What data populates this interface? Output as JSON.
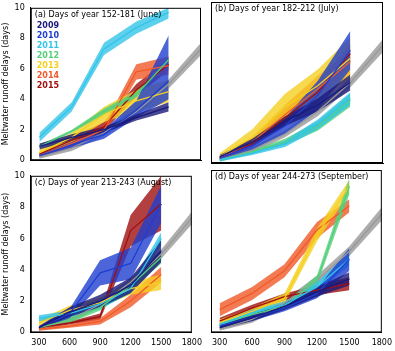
{
  "chart_data": [
    {
      "type": "line",
      "title": "(a) Days of year 152-181 (June)",
      "y_label": "Meltwater runoff delays (days)",
      "x": [
        300,
        600,
        900,
        1200,
        1500
      ],
      "xlim": [
        220,
        1800
      ],
      "xticks": [
        300,
        600,
        900,
        1200,
        1500,
        1800
      ],
      "ylim": [
        0,
        10
      ],
      "yticks": [
        0,
        2,
        4,
        6,
        8,
        10
      ],
      "grid": false,
      "legend": "upper left",
      "tick_labels": "y",
      "series": [
        {
          "name": "2009",
          "color": "#1a1a7a",
          "values": [
            0.9,
            1.5,
            2.0,
            2.8,
            3.5
          ],
          "lower": [
            0.7,
            1.3,
            1.8,
            2.6,
            3.2
          ],
          "upper": [
            1.1,
            1.7,
            2.2,
            3.0,
            3.8
          ]
        },
        {
          "name": "2010",
          "color": "#1f3fd0",
          "values": [
            0.3,
            1.0,
            1.7,
            3.3,
            5.2
          ],
          "lower": [
            0.2,
            0.8,
            1.4,
            2.8,
            4.0
          ],
          "upper": [
            0.4,
            1.2,
            2.0,
            3.9,
            8.2
          ]
        },
        {
          "name": "2011",
          "color": "#33c4e8",
          "values": [
            1.5,
            3.5,
            7.3,
            8.7,
            9.7
          ],
          "lower": [
            1.2,
            3.2,
            6.9,
            8.3,
            9.3
          ],
          "upper": [
            1.8,
            3.8,
            7.7,
            9.1,
            10
          ]
        },
        {
          "name": "2012",
          "color": "#55d07a",
          "values": [
            0.9,
            1.9,
            3.2,
            4.3,
            6.6
          ],
          "lower": [
            0.8,
            1.8,
            3.0,
            4.1,
            6.4
          ],
          "upper": [
            1.0,
            2.0,
            3.4,
            4.5,
            6.8
          ]
        },
        {
          "name": "2013",
          "color": "#f5d020",
          "values": [
            0.5,
            1.5,
            3.0,
            3.9,
            4.5
          ],
          "lower": [
            0.3,
            1.2,
            2.5,
            3.2,
            3.8
          ],
          "upper": [
            0.7,
            1.8,
            3.5,
            4.6,
            5.3
          ]
        },
        {
          "name": "2014",
          "color": "#f05a28",
          "values": [
            0.3,
            1.1,
            2.0,
            5.8,
            6.2
          ],
          "lower": [
            0.2,
            0.9,
            1.7,
            5.3,
            5.6
          ],
          "upper": [
            0.4,
            1.3,
            2.3,
            6.3,
            6.8
          ]
        },
        {
          "name": "2015",
          "color": "#a01010",
          "values": [
            0.4,
            1.3,
            2.2,
            4.6,
            6.3
          ],
          "lower": [
            0.3,
            1.1,
            1.9,
            4.2,
            5.9
          ],
          "upper": [
            0.5,
            1.5,
            2.5,
            5.0,
            6.7
          ]
        },
        {
          "color": "#999999",
          "x": [
            300,
            600,
            900,
            1200,
            1500,
            1800
          ],
          "values": [
            0.2,
            0.8,
            1.8,
            3.2,
            5.0,
            7.3
          ],
          "lower": [
            0.1,
            0.6,
            1.6,
            2.9,
            4.7,
            6.9
          ],
          "upper": [
            0.3,
            1.0,
            2.0,
            3.5,
            5.3,
            7.7
          ]
        }
      ]
    },
    {
      "type": "line",
      "title": "(b) Days of year 182-212 (July)",
      "x": [
        300,
        600,
        900,
        1200,
        1500
      ],
      "xlim": [
        220,
        1800
      ],
      "xticks": [
        300,
        600,
        900,
        1200,
        1500,
        1800
      ],
      "ylim": [
        0,
        10
      ],
      "yticks": [
        0,
        2,
        4,
        6,
        8,
        10
      ],
      "grid": false,
      "tick_labels": false,
      "series": [
        {
          "name": "2009",
          "color": "#1a1a7a",
          "values": [
            0.4,
            1.3,
            2.6,
            3.6,
            5.0
          ],
          "lower": [
            0.3,
            1.1,
            2.3,
            3.2,
            4.5
          ],
          "upper": [
            0.5,
            1.5,
            2.9,
            4.0,
            5.5
          ]
        },
        {
          "name": "2010",
          "color": "#1f3fd0",
          "values": [
            0.3,
            1.1,
            2.3,
            4.2,
            7.0
          ],
          "lower": [
            0.2,
            0.8,
            1.8,
            3.3,
            5.8
          ],
          "upper": [
            0.4,
            1.4,
            2.8,
            5.1,
            8.2
          ]
        },
        {
          "name": "2011",
          "color": "#33c4e8",
          "values": [
            0.2,
            0.6,
            1.2,
            2.4,
            4.0
          ],
          "lower": [
            0.1,
            0.5,
            1.0,
            2.1,
            3.6
          ],
          "upper": [
            0.3,
            0.7,
            1.4,
            2.7,
            4.4
          ]
        },
        {
          "name": "2012",
          "color": "#55d07a",
          "values": [
            0.2,
            0.7,
            1.3,
            2.3,
            3.9
          ],
          "lower": [
            0.1,
            0.6,
            1.1,
            2.0,
            3.5
          ],
          "upper": [
            0.3,
            0.8,
            1.5,
            2.6,
            4.3
          ]
        },
        {
          "name": "2013",
          "color": "#f5d020",
          "values": [
            0.4,
            1.6,
            3.5,
            4.8,
            6.5
          ],
          "lower": [
            0.2,
            1.1,
            2.7,
            3.8,
            5.3
          ],
          "upper": [
            0.6,
            2.1,
            4.3,
            5.8,
            7.8
          ]
        },
        {
          "name": "2014",
          "color": "#f05a28",
          "values": [
            0.3,
            1.3,
            3.0,
            4.6,
            6.3
          ],
          "lower": [
            0.2,
            1.0,
            2.4,
            3.8,
            5.5
          ],
          "upper": [
            0.4,
            1.6,
            3.6,
            5.4,
            7.1
          ]
        },
        {
          "name": "2015",
          "color": "#a01010",
          "values": [
            0.3,
            1.2,
            2.8,
            4.4,
            6.8
          ],
          "lower": [
            0.2,
            1.0,
            2.3,
            3.8,
            6.2
          ],
          "upper": [
            0.4,
            1.4,
            3.3,
            5.0,
            7.4
          ]
        },
        {
          "color": "#999999",
          "x": [
            300,
            600,
            900,
            1200,
            1500,
            1800
          ],
          "values": [
            0.2,
            0.8,
            1.8,
            3.2,
            5.0,
            7.3
          ],
          "lower": [
            0.1,
            0.6,
            1.6,
            2.9,
            4.7,
            6.9
          ],
          "upper": [
            0.3,
            1.0,
            2.0,
            3.5,
            5.3,
            7.7
          ]
        }
      ]
    },
    {
      "type": "line",
      "title": "(c) Days of year 213-243 (August)",
      "y_label": "Meltwater runoff delays (days)",
      "x": [
        300,
        600,
        900,
        1200,
        1500
      ],
      "xlim": [
        220,
        1800
      ],
      "xticks": [
        300,
        600,
        900,
        1200,
        1500,
        1800
      ],
      "ylim": [
        0,
        10
      ],
      "yticks": [
        0,
        2,
        4,
        6,
        8,
        10
      ],
      "grid": false,
      "tick_labels": true,
      "series": [
        {
          "name": "2009",
          "color": "#1a1a7a",
          "values": [
            0.3,
            1.3,
            2.0,
            3.0,
            5.2
          ],
          "lower": [
            0.2,
            1.0,
            1.6,
            2.5,
            4.5
          ],
          "upper": [
            0.4,
            1.6,
            2.4,
            3.5,
            5.9
          ]
        },
        {
          "name": "2010",
          "color": "#1f3fd0",
          "values": [
            0.3,
            1.2,
            3.8,
            4.4,
            8.2
          ],
          "lower": [
            0.2,
            0.9,
            3.0,
            3.4,
            7.0
          ],
          "upper": [
            0.4,
            1.5,
            4.6,
            5.4,
            9.4
          ]
        },
        {
          "name": "2011",
          "color": "#33c4e8",
          "values": [
            0.9,
            1.2,
            1.8,
            2.8,
            6.0
          ],
          "lower": [
            0.7,
            1.0,
            1.5,
            2.5,
            5.6
          ],
          "upper": [
            1.1,
            1.4,
            2.1,
            3.1,
            6.4
          ]
        },
        {
          "name": "2012",
          "color": "#55d07a",
          "values": [
            0.3,
            0.8,
            1.6,
            3.0,
            4.8
          ],
          "lower": [
            0.2,
            0.6,
            1.4,
            2.7,
            4.4
          ],
          "upper": [
            0.4,
            1.0,
            1.8,
            3.3,
            5.2
          ]
        },
        {
          "name": "2013",
          "color": "#f5d020",
          "values": [
            0.6,
            1.4,
            1.9,
            2.8,
            3.2
          ],
          "lower": [
            0.4,
            1.1,
            1.6,
            2.4,
            2.7
          ],
          "upper": [
            0.8,
            1.7,
            2.2,
            3.2,
            3.7
          ]
        },
        {
          "name": "2014",
          "color": "#f05a28",
          "values": [
            0.2,
            0.4,
            0.7,
            2.0,
            3.7
          ],
          "lower": [
            0.1,
            0.3,
            0.5,
            1.6,
            3.2
          ],
          "upper": [
            0.3,
            0.5,
            0.9,
            2.4,
            4.2
          ]
        },
        {
          "name": "2015",
          "color": "#a01010",
          "values": [
            0.3,
            0.6,
            1.0,
            6.5,
            8.2
          ],
          "lower": [
            0.2,
            0.5,
            0.8,
            5.5,
            6.5
          ],
          "upper": [
            0.4,
            0.7,
            1.2,
            7.5,
            10
          ]
        },
        {
          "color": "#999999",
          "x": [
            300,
            600,
            900,
            1200,
            1500,
            1800
          ],
          "values": [
            0.2,
            0.8,
            1.8,
            3.2,
            5.0,
            7.3
          ],
          "lower": [
            0.1,
            0.6,
            1.6,
            2.9,
            4.7,
            6.9
          ],
          "upper": [
            0.3,
            1.0,
            2.0,
            3.5,
            5.3,
            7.7
          ]
        }
      ]
    },
    {
      "type": "line",
      "title": "(d) Days of year 244-273 (September)",
      "x": [
        300,
        600,
        900,
        1200,
        1500
      ],
      "xlim": [
        220,
        1800
      ],
      "xticks": [
        300,
        600,
        900,
        1200,
        1500,
        1800
      ],
      "ylim": [
        0,
        10
      ],
      "yticks": [
        0,
        2,
        4,
        6,
        8,
        10
      ],
      "grid": false,
      "tick_labels": "x",
      "series": [
        {
          "name": "2009",
          "color": "#1a1a7a",
          "values": [
            0.3,
            0.9,
            1.6,
            2.5,
            3.3
          ],
          "lower": [
            0.2,
            0.7,
            1.4,
            2.2,
            2.9
          ],
          "upper": [
            0.4,
            1.1,
            1.8,
            2.8,
            3.7
          ]
        },
        {
          "name": "2010",
          "color": "#1f3fd0",
          "values": [
            0.4,
            0.9,
            1.5,
            2.4,
            4.5
          ],
          "lower": [
            0.3,
            0.7,
            1.3,
            2.1,
            3.8
          ],
          "upper": [
            0.5,
            1.1,
            1.7,
            2.7,
            5.2
          ]
        },
        {
          "name": "2011",
          "color": "#33c4e8",
          "values": [
            0.5,
            1.2,
            1.7,
            2.8,
            4.5
          ],
          "lower": [
            0.4,
            1.0,
            1.5,
            2.5,
            4.1
          ],
          "upper": [
            0.6,
            1.4,
            1.9,
            3.1,
            4.9
          ]
        },
        {
          "name": "2012",
          "color": "#55d07a",
          "values": [
            0.5,
            1.1,
            1.6,
            3.2,
            9.0
          ],
          "lower": [
            0.4,
            0.9,
            1.4,
            2.9,
            8.5
          ],
          "upper": [
            0.6,
            1.3,
            1.8,
            3.5,
            9.5
          ]
        },
        {
          "name": "2013",
          "color": "#f5d020",
          "values": [
            0.6,
            1.3,
            2.1,
            6.0,
            9.0
          ],
          "lower": [
            0.4,
            1.1,
            1.8,
            5.6,
            8.6
          ],
          "upper": [
            0.8,
            1.5,
            2.4,
            6.4,
            9.4
          ]
        },
        {
          "name": "2014",
          "color": "#f05a28",
          "values": [
            1.4,
            2.4,
            3.8,
            6.3,
            7.8
          ],
          "lower": [
            1.0,
            2.0,
            3.4,
            5.8,
            7.4
          ],
          "upper": [
            1.8,
            2.8,
            4.2,
            6.8,
            8.2
          ]
        },
        {
          "name": "2015",
          "color": "#a01010",
          "values": [
            0.7,
            1.5,
            2.2,
            2.6,
            3.0
          ],
          "lower": [
            0.5,
            1.3,
            2.0,
            2.3,
            2.6
          ],
          "upper": [
            0.9,
            1.7,
            2.4,
            2.9,
            3.4
          ]
        },
        {
          "color": "#999999",
          "x": [
            300,
            600,
            900,
            1200,
            1500,
            1800
          ],
          "values": [
            0.2,
            0.8,
            1.8,
            3.2,
            5.0,
            7.3
          ],
          "lower": [
            0.1,
            0.6,
            1.6,
            2.9,
            4.7,
            6.9
          ],
          "upper": [
            0.3,
            1.0,
            2.0,
            3.5,
            5.3,
            7.7
          ]
        }
      ]
    }
  ]
}
